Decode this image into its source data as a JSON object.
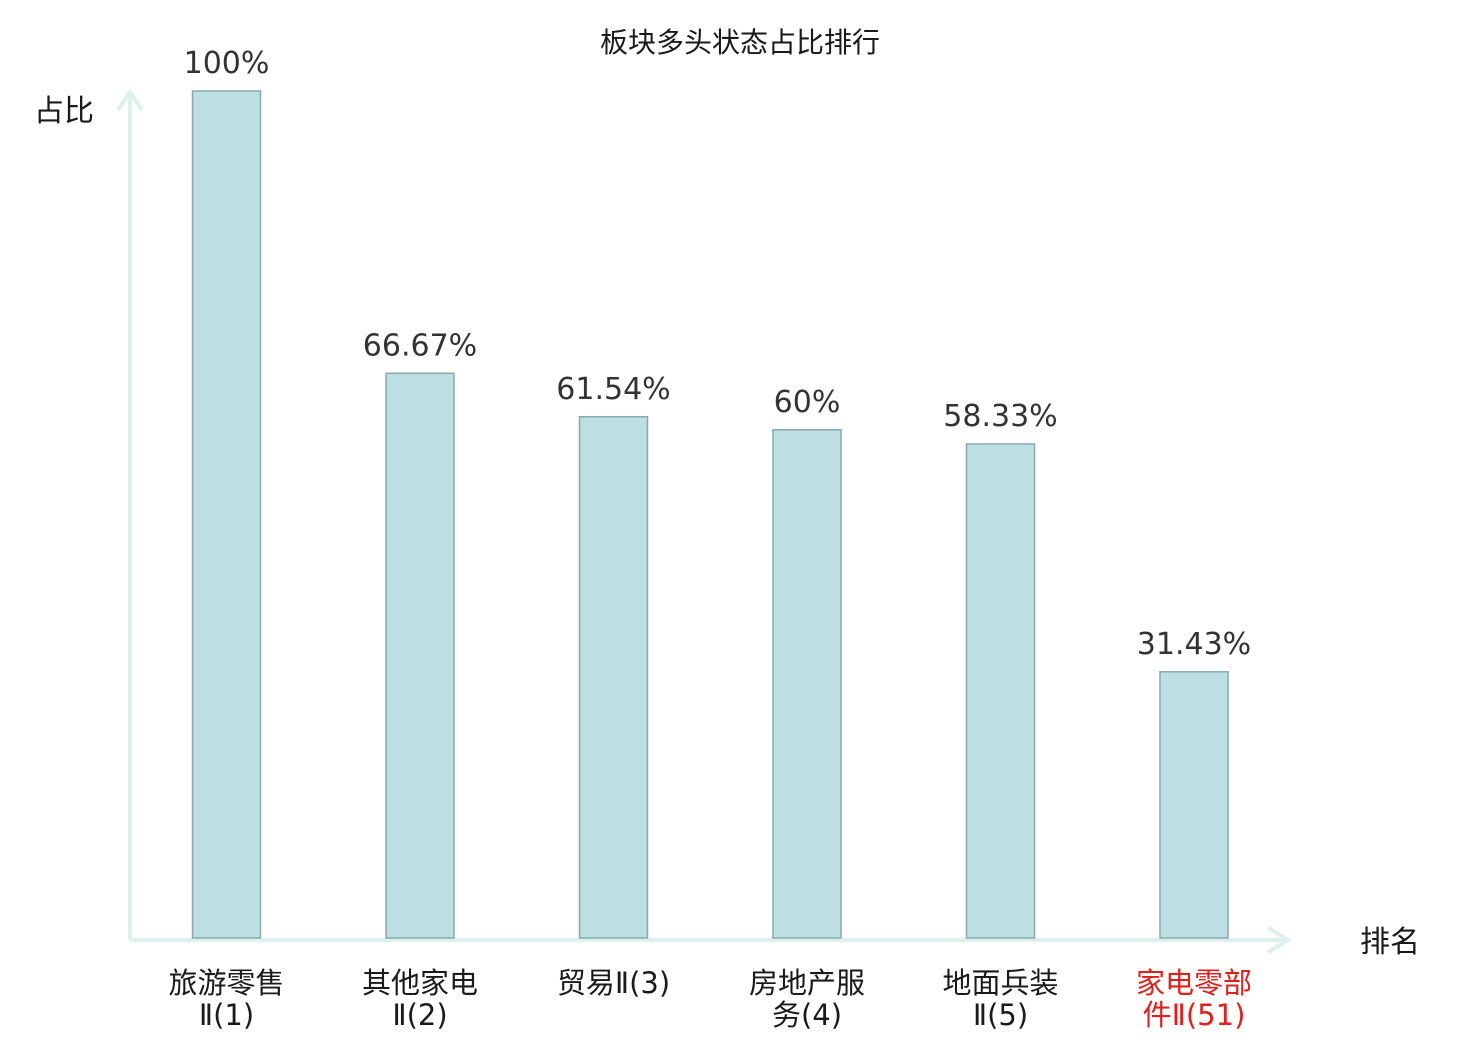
{
  "chart_data": {
    "type": "bar",
    "title": "板块多头状态占比排行",
    "ylabel": "占比",
    "xlabel": "排名",
    "categories": [
      [
        "旅游零售",
        "Ⅱ(1)"
      ],
      [
        "其他家电",
        "Ⅱ(2)"
      ],
      [
        "贸易Ⅱ(3)"
      ],
      [
        "房地产服",
        "务(4)"
      ],
      [
        "地面兵装",
        "Ⅱ(5)"
      ],
      [
        "家电零部",
        "件Ⅱ(51)"
      ]
    ],
    "values": [
      100,
      66.67,
      61.54,
      60,
      58.33,
      31.43
    ],
    "value_labels": [
      "100%",
      "66.67%",
      "61.54%",
      "60%",
      "58.33%",
      "31.43%"
    ],
    "highlight_index": 5,
    "ylim": [
      0,
      100
    ],
    "grid": false,
    "colors": {
      "bar_fill": "#bce0e2",
      "bar_stroke": "#8aa8ac",
      "axis": "#dcf0ee",
      "highlight_text": "#e0201c"
    }
  }
}
